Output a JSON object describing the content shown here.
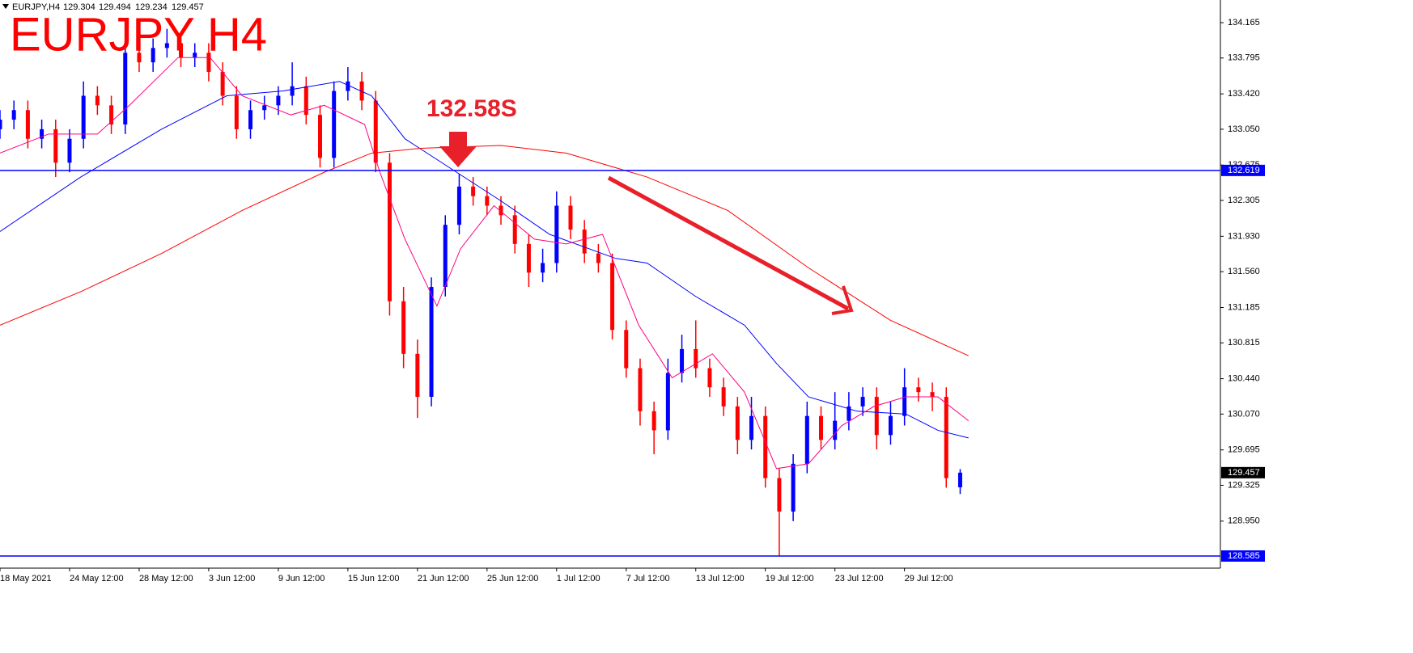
{
  "chart_data": {
    "type": "candlestick",
    "symbol": "EURJPY,H4",
    "title": "EURJPY H4",
    "annotation": "132.58S",
    "up_color": "#0000ff",
    "down_color": "#ff0000",
    "xlim": [
      0,
      87.7
    ],
    "ylim": [
      128.458,
      134.402
    ],
    "xticks": [
      {
        "value": 0,
        "label": "18 May 2021"
      },
      {
        "value": 5,
        "label": "24 May 12:00"
      },
      {
        "value": 10,
        "label": "28 May 12:00"
      },
      {
        "value": 15,
        "label": "3 Jun 12:00"
      },
      {
        "value": 20,
        "label": "9 Jun 12:00"
      },
      {
        "value": 25,
        "label": "15 Jun 12:00"
      },
      {
        "value": 30,
        "label": "21 Jun 12:00"
      },
      {
        "value": 35,
        "label": "25 Jun 12:00"
      },
      {
        "value": 40,
        "label": "1 Jul 12:00"
      },
      {
        "value": 45,
        "label": "7 Jul 12:00"
      },
      {
        "value": 50,
        "label": "13 Jul 12:00"
      },
      {
        "value": 55,
        "label": "19 Jul 12:00"
      },
      {
        "value": 60,
        "label": "23 Jul 12:00"
      },
      {
        "value": 65,
        "label": "29 Jul 12:00"
      }
    ],
    "yticks": [
      134.165,
      133.795,
      {
        "value": 133.42,
        "label": "133.420"
      },
      {
        "value": 133.05,
        "label": "133.050"
      },
      132.675,
      132.305,
      {
        "value": 131.93,
        "label": "131.930"
      },
      {
        "value": 131.56,
        "label": "131.560"
      },
      131.185,
      130.815,
      {
        "value": 130.44,
        "label": "130.440"
      },
      {
        "value": 130.07,
        "label": "130.070"
      },
      129.695,
      129.325,
      {
        "value": 128.95,
        "label": "128.950"
      }
    ],
    "open": [
      133.05,
      133.15,
      133.25,
      132.95,
      133.05,
      132.7,
      132.95,
      133.4,
      133.3,
      133.1,
      133.85,
      133.75,
      133.9,
      133.95,
      133.8,
      133.85,
      133.65,
      133.4,
      133.05,
      133.25,
      133.3,
      133.4,
      133.5,
      133.2,
      132.75,
      133.45,
      133.55,
      133.35,
      132.7,
      131.25,
      130.7,
      130.25,
      131.4,
      132.05,
      132.45,
      132.35,
      132.25,
      132.15,
      131.85,
      131.55,
      131.65,
      132.25,
      132.0,
      131.75,
      131.65,
      130.95,
      130.55,
      130.1,
      129.9,
      130.5,
      130.75,
      130.55,
      130.35,
      130.15,
      129.8,
      130.05,
      129.4,
      129.05,
      129.55,
      130.05,
      129.8,
      130.0,
      130.15,
      130.25,
      129.85,
      130.05,
      130.35,
      130.3,
      130.25,
      129.304
    ],
    "high": [
      133.25,
      133.35,
      133.35,
      133.15,
      133.15,
      133.05,
      133.55,
      133.5,
      133.4,
      134.0,
      133.95,
      134.0,
      134.1,
      134.05,
      133.95,
      133.95,
      133.75,
      133.5,
      133.35,
      133.4,
      133.5,
      133.75,
      133.6,
      133.3,
      133.55,
      133.7,
      133.65,
      133.45,
      132.8,
      131.4,
      130.85,
      131.5,
      132.15,
      132.58,
      132.55,
      132.45,
      132.35,
      132.25,
      131.95,
      131.8,
      132.4,
      132.35,
      132.1,
      131.85,
      131.75,
      131.05,
      130.65,
      130.2,
      130.65,
      130.9,
      131.05,
      130.65,
      130.45,
      130.25,
      130.25,
      130.15,
      129.5,
      129.65,
      130.2,
      130.15,
      130.3,
      130.3,
      130.35,
      130.35,
      130.2,
      130.55,
      130.45,
      130.4,
      130.35,
      129.494
    ],
    "low": [
      132.95,
      133.05,
      132.85,
      132.85,
      132.55,
      132.6,
      132.85,
      133.2,
      133.0,
      133.0,
      133.65,
      133.65,
      133.8,
      133.7,
      133.7,
      133.55,
      133.3,
      132.95,
      132.95,
      133.15,
      133.2,
      133.3,
      133.1,
      132.65,
      132.65,
      133.35,
      133.25,
      132.6,
      131.1,
      130.55,
      130.03,
      130.15,
      131.3,
      131.95,
      132.25,
      132.15,
      132.05,
      131.75,
      131.4,
      131.45,
      131.55,
      131.9,
      131.65,
      131.55,
      130.85,
      130.45,
      129.95,
      129.65,
      129.8,
      130.4,
      130.45,
      130.25,
      130.05,
      129.65,
      129.7,
      129.3,
      128.585,
      128.95,
      129.45,
      129.7,
      129.7,
      129.9,
      130.05,
      129.7,
      129.75,
      129.95,
      130.2,
      130.1,
      129.3,
      129.234
    ],
    "close": [
      133.15,
      133.25,
      132.95,
      133.05,
      132.7,
      132.95,
      133.4,
      133.3,
      133.1,
      133.85,
      133.75,
      133.9,
      133.95,
      133.8,
      133.85,
      133.65,
      133.4,
      133.05,
      133.25,
      133.3,
      133.4,
      133.5,
      133.2,
      132.75,
      133.45,
      133.55,
      133.35,
      132.7,
      131.25,
      130.7,
      130.25,
      131.4,
      132.05,
      132.45,
      132.35,
      132.25,
      132.15,
      131.85,
      131.55,
      131.65,
      132.25,
      132.0,
      131.75,
      131.65,
      130.95,
      130.55,
      130.1,
      129.9,
      130.5,
      130.75,
      130.55,
      130.35,
      130.15,
      129.8,
      130.05,
      129.4,
      129.05,
      129.55,
      130.05,
      129.8,
      130.0,
      130.15,
      130.25,
      129.85,
      130.05,
      130.35,
      130.3,
      130.25,
      129.4,
      129.457
    ],
    "ma_lines": [
      {
        "color": "#0000ff",
        "x": [
          0,
          5.8,
          11.6,
          16.3,
          20.3,
          24.4,
          26.7,
          29.1,
          32.6,
          36.0,
          39.5,
          44.2,
          46.5,
          50.0,
          53.5,
          55.8,
          58.1,
          61.6,
          65.1,
          67.4,
          69.6
        ],
        "values": [
          131.98,
          132.55,
          133.05,
          133.4,
          133.45,
          133.55,
          133.4,
          132.95,
          132.62,
          132.3,
          131.95,
          131.7,
          131.65,
          131.3,
          131.0,
          130.6,
          130.25,
          130.1,
          130.07,
          129.9,
          129.82
        ]
      },
      {
        "color": "#ff0080",
        "x": [
          0,
          3.5,
          7.0,
          9.3,
          12.8,
          15.1,
          17.4,
          20.9,
          23.3,
          26.2,
          27.3,
          29.1,
          31.4,
          33.1,
          35.5,
          38.4,
          40.7,
          43.3,
          45.9,
          48.3,
          51.2,
          53.5,
          55.8,
          58.1,
          60.5,
          62.8,
          65.1,
          67.4,
          69.6
        ],
        "values": [
          132.8,
          133.0,
          133.0,
          133.3,
          133.8,
          133.8,
          133.4,
          133.2,
          133.3,
          133.1,
          132.6,
          131.9,
          131.2,
          131.8,
          132.25,
          131.9,
          131.85,
          131.95,
          131.0,
          130.45,
          130.7,
          130.3,
          129.5,
          129.55,
          129.95,
          130.15,
          130.25,
          130.25,
          130.0
        ]
      },
      {
        "color": "#ff0000",
        "x": [
          0,
          5.8,
          11.6,
          17.4,
          23.3,
          26.7,
          30.2,
          36.0,
          40.7,
          46.5,
          52.3,
          58.1,
          64.0,
          69.6
        ],
        "values": [
          131.0,
          131.35,
          131.75,
          132.2,
          132.6,
          132.8,
          132.85,
          132.88,
          132.8,
          132.55,
          132.2,
          131.6,
          131.05,
          130.68
        ]
      }
    ],
    "hlines": [
      {
        "value": 132.619,
        "color": "#0000ff"
      },
      {
        "value": 128.585,
        "color": "#0000ff"
      }
    ]
  }
}
